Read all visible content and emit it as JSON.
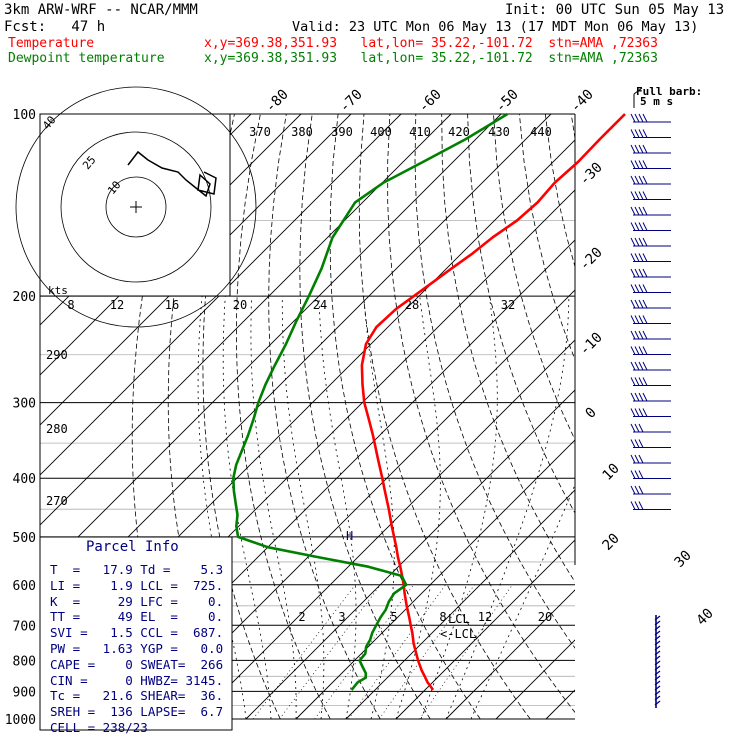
{
  "header": {
    "model": "3km ARW-WRF -- NCAR/MMM",
    "init": "Init: 00 UTC Sun 05 May 13",
    "fcst": "Fcst:   47 h",
    "valid": "Valid: 23 UTC Mon 06 May 13 (17 MDT Mon 06 May 13)",
    "temp_label": "Temperature",
    "temp_info": "x,y=369.38,351.93   lat,lon= 35.22,-101.72  stn=AMA ,72363",
    "dew_label": "Dewpoint temperature",
    "dew_info": "x,y=369.38,351.93   lat,lon= 35.22,-101.72  stn=AMA ,72363"
  },
  "colors": {
    "temperature": "#ff0000",
    "dewpoint": "#008000",
    "parcel_text": "#000080",
    "barbs": "#000080"
  },
  "chart_data": {
    "type": "line",
    "subtype": "skew-T log-p",
    "y_axis": {
      "label": "",
      "scale": "log",
      "ylim": [
        1000,
        100
      ],
      "ticks": [
        100,
        200,
        300,
        400,
        500,
        600,
        700,
        800,
        900,
        1000
      ]
    },
    "isotherm_labels": [
      "-80",
      "-70",
      "-60",
      "-50",
      "-40",
      "-30",
      "-20",
      "-10",
      "0",
      "10",
      "20",
      "30",
      "40"
    ],
    "theta_labels": [
      "370",
      "380",
      "390",
      "400",
      "410",
      "420",
      "430",
      "440"
    ],
    "theta_side_labels": [
      "290",
      "280",
      "270"
    ],
    "mixing_ratio_labels": [
      "2",
      "3",
      "5",
      "8",
      "12",
      "20"
    ],
    "hodograph_speed_labels": [
      "8",
      "12",
      "16",
      "20",
      "24",
      "28",
      "32"
    ],
    "hodograph_ring_labels": [
      "10",
      "25",
      "40"
    ],
    "hodograph_units": "kts",
    "barb_legend": [
      "Full barb:",
      "5 m s"
    ],
    "lcl_labels": [
      "LCL",
      "<-LCL"
    ],
    "series": [
      {
        "name": "Temperature",
        "color": "#ff0000",
        "p": [
          895,
          870,
          850,
          830,
          800,
          780,
          750,
          720,
          700,
          680,
          650,
          620,
          600,
          580,
          560,
          540,
          520,
          500,
          480,
          450,
          420,
          400,
          370,
          340,
          320,
          300,
          280,
          260,
          240,
          225,
          210,
          200,
          190,
          180,
          170,
          160,
          150,
          140,
          130,
          120,
          110,
          100
        ],
        "t": [
          21.6,
          19.0,
          17.2,
          15.3,
          12.7,
          11.0,
          8.4,
          6.0,
          4.2,
          2.4,
          -0.5,
          -3.4,
          -5.3,
          -7.4,
          -9.6,
          -12.0,
          -14.3,
          -16.8,
          -19.4,
          -23.4,
          -27.8,
          -30.9,
          -35.9,
          -41.3,
          -45.3,
          -49.6,
          -53.6,
          -57.6,
          -61.0,
          -62.3,
          -62.0,
          -61.0,
          -60.0,
          -59.0,
          -57.8,
          -57.0,
          -55.5,
          -55.0,
          -55.5,
          -55.0,
          -55.2,
          -55.2
        ]
      },
      {
        "name": "Dewpoint temperature",
        "color": "#008000",
        "p": [
          895,
          870,
          855,
          840,
          820,
          800,
          780,
          760,
          740,
          720,
          700,
          680,
          660,
          640,
          620,
          600,
          580,
          560,
          540,
          520,
          500,
          480,
          460,
          440,
          420,
          400,
          380,
          360,
          340,
          320,
          300,
          280,
          260,
          240,
          220,
          200,
          180,
          160,
          140,
          130,
          120,
          110,
          100
        ],
        "t": [
          5.3,
          5.0,
          5.7,
          4.8,
          2.9,
          1.0,
          0.8,
          -0.4,
          -1.0,
          -2.0,
          -2.7,
          -3.4,
          -3.9,
          -4.9,
          -5.5,
          -4.8,
          -7.5,
          -16.0,
          -28.0,
          -40.0,
          -48.0,
          -50.5,
          -52.5,
          -55.2,
          -58.0,
          -60.7,
          -62.8,
          -64.5,
          -66.3,
          -68.4,
          -70.8,
          -73.0,
          -75.0,
          -77.0,
          -79.5,
          -82.0,
          -85.0,
          -89.0,
          -91.5,
          -89.8,
          -86.0,
          -82.0,
          -78.7
        ]
      }
    ]
  },
  "parcel": {
    "title": "Parcel Info",
    "rows": [
      "T  =   17.9 Td =    5.3",
      "LI =    1.9 LCL =  725.",
      "K  =     29 LFC =    0.",
      "TT =     49 EL  =    0.",
      "SVI =   1.5 CCL =  687.",
      "PW =   1.63 YGP =   0.0",
      "CAPE =    0 SWEAT=  266",
      "CIN =     0 HWBZ= 3145.",
      "Tc =   21.6 SHEAR=  36.",
      "SREH =  136 LAPSE=  6.7",
      "CELL = 238/23"
    ]
  }
}
